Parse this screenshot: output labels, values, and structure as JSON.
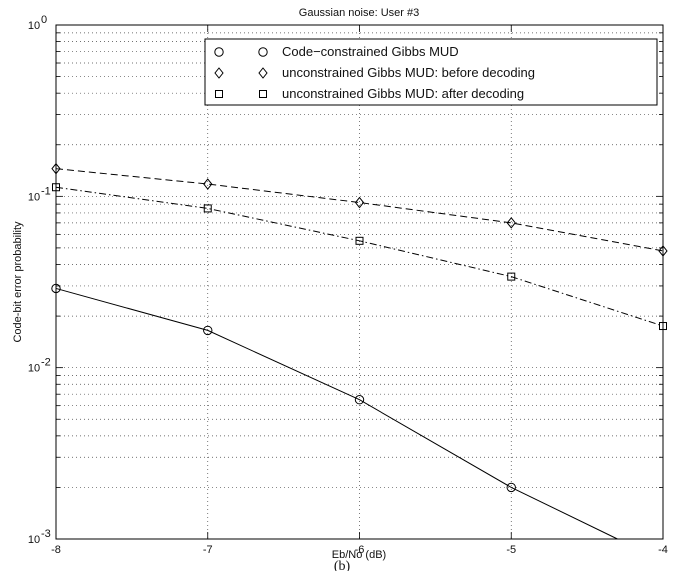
{
  "chart_data": {
    "type": "line",
    "title": "Gaussian noise: User #3",
    "xlabel": "Eb/No (dB)",
    "ylabel": "Code-bit error probability",
    "caption": "(b)",
    "xlim": [
      -8,
      -4
    ],
    "ylim": [
      0.001,
      1
    ],
    "yscale": "log",
    "grid": true,
    "legend_position": "top-right",
    "x_ticks": [
      "-8",
      "-7",
      "-6",
      "-5",
      "-4"
    ],
    "y_ticks": [
      {
        "base": "10",
        "exp": "0",
        "value": 1
      },
      {
        "base": "10",
        "exp": "-1",
        "value": 0.1
      },
      {
        "base": "10",
        "exp": "-2",
        "value": 0.01
      },
      {
        "base": "10",
        "exp": "-3",
        "value": 0.001
      }
    ],
    "series": [
      {
        "name": "Code−constrained Gibbs MUD",
        "marker": "circle",
        "line": "solid",
        "x": [
          -8,
          -7,
          -6,
          -5,
          -4.3
        ],
        "y": [
          0.029,
          0.0165,
          0.0065,
          0.002,
          0.001
        ],
        "marker_x": [
          -8,
          -7,
          -6,
          -5
        ]
      },
      {
        "name": "unconstrained Gibbs MUD: before decoding",
        "marker": "diamond",
        "line": "dashed",
        "x": [
          -8,
          -7,
          -6,
          -5,
          -4
        ],
        "y": [
          0.145,
          0.118,
          0.092,
          0.07,
          0.048
        ],
        "marker_x": [
          -8,
          -7,
          -6,
          -5,
          -4
        ]
      },
      {
        "name": "unconstrained Gibbs MUD: after decoding",
        "marker": "square",
        "line": "dashdot",
        "x": [
          -8,
          -7,
          -6,
          -5,
          -4
        ],
        "y": [
          0.113,
          0.085,
          0.055,
          0.034,
          0.0175
        ],
        "marker_x": [
          -8,
          -7,
          -6,
          -5,
          -4
        ]
      }
    ]
  }
}
